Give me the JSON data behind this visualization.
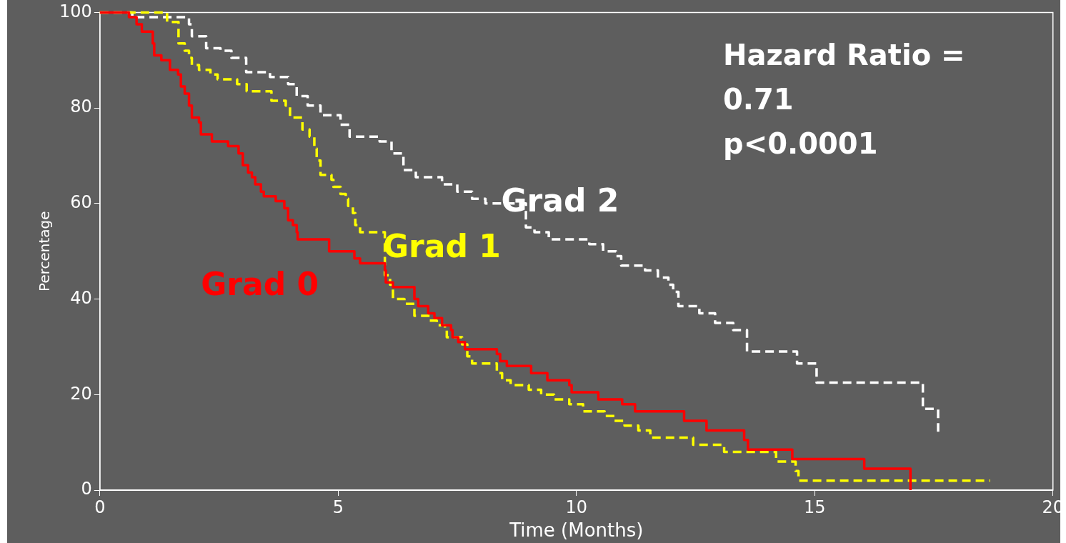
{
  "chart_data": {
    "type": "step",
    "xlabel": "Time (Months)",
    "ylabel": "Percentage",
    "xlim": [
      0,
      20
    ],
    "xticks": [
      0,
      5,
      10,
      15,
      20
    ],
    "ylim": [
      0,
      100
    ],
    "yticks": [
      0,
      20,
      40,
      60,
      80,
      100
    ],
    "grid": false,
    "legend": false,
    "marker": "none",
    "annotations": [
      "Hazard Ratio = 0.71",
      "p<0.0001"
    ],
    "series": [
      {
        "name": "Grad 0",
        "color": "#ff0000",
        "line_style": "solid",
        "x": [
          0,
          0.61,
          0.77,
          0.88,
          1.11,
          1.14,
          1.29,
          1.47,
          1.64,
          1.7,
          1.78,
          1.87,
          1.93,
          2.08,
          2.12,
          2.35,
          2.69,
          2.91,
          3.0,
          3.11,
          3.19,
          3.26,
          3.38,
          3.44,
          3.69,
          3.87,
          3.95,
          4.05,
          4.13,
          4.15,
          4.81,
          5.34,
          5.46,
          5.98,
          6.0,
          6.15,
          6.6,
          6.68,
          6.89,
          7.02,
          7.18,
          7.37,
          7.4,
          7.52,
          7.66,
          8.33,
          8.4,
          8.54,
          9.05,
          9.39,
          9.85,
          9.9,
          10.46,
          10.96,
          11.23,
          12.26,
          12.73,
          13.52,
          13.6,
          14.53,
          16.04,
          17.01
        ],
        "values": [
          100,
          99,
          97.5,
          96,
          93.5,
          91,
          90,
          88,
          87,
          84.5,
          83,
          80.5,
          78,
          77,
          74.5,
          73,
          72,
          70.5,
          68,
          66.5,
          65.5,
          64,
          62.5,
          61.5,
          60.5,
          59,
          56.5,
          55.5,
          54,
          52.5,
          50,
          48.5,
          47.5,
          46,
          43.5,
          42.5,
          40,
          38.5,
          37,
          36,
          34.5,
          33.5,
          32,
          31,
          29.5,
          28.5,
          27,
          26,
          24.5,
          23,
          22,
          20.5,
          19,
          18,
          16.5,
          14.5,
          12.5,
          10.5,
          8.5,
          6.5,
          4.5,
          0
        ]
      },
      {
        "name": "Grad 1",
        "color": "#ffff00",
        "line_style": "dashed",
        "x": [
          0,
          1.41,
          1.65,
          1.78,
          1.87,
          1.93,
          2.08,
          2.32,
          2.47,
          2.88,
          3.08,
          3.6,
          3.9,
          3.99,
          4.25,
          4.4,
          4.5,
          4.55,
          4.63,
          4.86,
          4.9,
          5.05,
          5.16,
          5.21,
          5.31,
          5.36,
          5.46,
          5.98,
          6.09,
          6.15,
          6.39,
          6.6,
          6.92,
          7.07,
          7.24,
          7.28,
          7.6,
          7.71,
          7.81,
          8.33,
          8.44,
          8.62,
          9.0,
          9.26,
          9.53,
          9.85,
          10.14,
          10.59,
          10.8,
          11.01,
          11.3,
          11.55,
          12.45,
          13.1,
          14.19,
          14.6,
          14.66,
          18.68
        ],
        "values": [
          100,
          98,
          93.5,
          92,
          90.5,
          89,
          88,
          87,
          86,
          85,
          83.5,
          81.5,
          80.5,
          78,
          75.5,
          74,
          71.5,
          69,
          66,
          65,
          63.5,
          62,
          61,
          59.5,
          58,
          55.5,
          54,
          45,
          43,
          40,
          39,
          36.5,
          35.5,
          34.5,
          33.5,
          32,
          30.5,
          28,
          26.5,
          24.5,
          23,
          22,
          21,
          20,
          19,
          18,
          16.5,
          15.5,
          14.5,
          13.5,
          12.5,
          11,
          9.5,
          8,
          6,
          4,
          2,
          2
        ]
      },
      {
        "name": "Grad 2",
        "color": "#ffffff",
        "line_style": "dashed",
        "x": [
          0,
          0.68,
          1.87,
          1.93,
          2.23,
          2.53,
          2.76,
          3.07,
          3.57,
          3.95,
          4.13,
          4.36,
          4.63,
          5.05,
          5.24,
          5.87,
          6.12,
          6.37,
          6.63,
          7.18,
          7.5,
          7.81,
          8.09,
          8.94,
          9.12,
          9.42,
          10.27,
          10.56,
          10.83,
          10.94,
          11.44,
          11.71,
          11.93,
          12.03,
          12.14,
          12.58,
          12.91,
          13.29,
          13.58,
          14.63,
          15.04,
          17.27,
          17.59
        ],
        "values": [
          100,
          99,
          97.5,
          95,
          92.5,
          92,
          90.5,
          87.5,
          86.5,
          85,
          82.5,
          80.5,
          78.5,
          76.5,
          74,
          73,
          70.5,
          67,
          65.5,
          64,
          62.5,
          61,
          60,
          55,
          54,
          52.5,
          51.5,
          50,
          49,
          47,
          46,
          44.5,
          43,
          41.5,
          38.5,
          37,
          35,
          33.5,
          29,
          26.5,
          22.5,
          17,
          12
        ]
      }
    ]
  }
}
